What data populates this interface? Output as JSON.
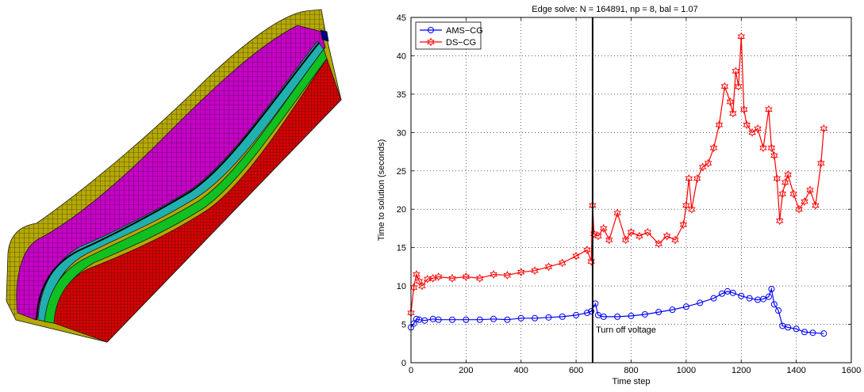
{
  "mesh_figure": {
    "colors": {
      "outer_shell": "#b5a800",
      "mid_layer": "#c800c8",
      "teal_layer": "#20b0b0",
      "green_layer": "#10c020",
      "core": "#d80000",
      "cap": "#000080",
      "mesh_line": "#1a1a1a"
    }
  },
  "chart_data": {
    "type": "line",
    "title": "Edge solve: N = 164891, np = 8, bal = 1.07",
    "xlabel": "Time step",
    "ylabel": "Time to solution (seconds)",
    "xlim": [
      0,
      1600
    ],
    "ylim": [
      0,
      45
    ],
    "xticks": [
      0,
      200,
      400,
      600,
      800,
      1000,
      1200,
      1400,
      1600
    ],
    "yticks": [
      0,
      5,
      10,
      15,
      20,
      25,
      30,
      35,
      40,
      45
    ],
    "grid": "dotted",
    "legend": "top-left",
    "vline": {
      "x": 660,
      "label": "Turn off voltage",
      "label_at": [
        672,
        3.9
      ]
    },
    "series": [
      {
        "name": "AMS−CG",
        "color": "#0000ff",
        "marker": "circle",
        "x": [
          0,
          10,
          20,
          30,
          50,
          80,
          100,
          150,
          200,
          250,
          300,
          350,
          400,
          450,
          500,
          550,
          600,
          640,
          655,
          670,
          680,
          700,
          750,
          800,
          850,
          900,
          950,
          1000,
          1050,
          1100,
          1130,
          1150,
          1170,
          1200,
          1230,
          1260,
          1280,
          1300,
          1310,
          1320,
          1335,
          1350,
          1370,
          1400,
          1430,
          1460,
          1500
        ],
        "values": [
          4.6,
          5.1,
          5.7,
          5.6,
          5.5,
          5.7,
          5.6,
          5.6,
          5.6,
          5.6,
          5.7,
          5.6,
          5.8,
          5.8,
          5.9,
          6.0,
          6.2,
          6.5,
          6.7,
          7.7,
          6.2,
          6.0,
          6.0,
          6.1,
          6.3,
          6.6,
          6.9,
          7.3,
          7.8,
          8.4,
          9.0,
          9.3,
          9.1,
          8.7,
          8.4,
          8.2,
          8.3,
          8.6,
          9.6,
          7.6,
          6.8,
          4.8,
          4.6,
          4.4,
          4.0,
          3.9,
          3.8
        ]
      },
      {
        "name": "DS−CG",
        "color": "#ff0000",
        "marker": "hexagram",
        "x": [
          0,
          10,
          20,
          30,
          40,
          60,
          80,
          100,
          150,
          200,
          250,
          300,
          350,
          400,
          450,
          500,
          550,
          600,
          640,
          655,
          660,
          665,
          680,
          700,
          720,
          750,
          780,
          800,
          830,
          860,
          900,
          930,
          960,
          990,
          1000,
          1010,
          1020,
          1040,
          1060,
          1080,
          1100,
          1120,
          1140,
          1160,
          1170,
          1180,
          1190,
          1200,
          1210,
          1220,
          1240,
          1260,
          1280,
          1300,
          1310,
          1320,
          1330,
          1340,
          1350,
          1360,
          1370,
          1390,
          1410,
          1430,
          1450,
          1470,
          1490,
          1500
        ],
        "values": [
          6.5,
          9.8,
          11.5,
          10.6,
          10.0,
          10.9,
          11.0,
          11.2,
          11.0,
          11.2,
          11.0,
          11.5,
          11.4,
          11.8,
          12.0,
          12.5,
          13.0,
          13.9,
          14.7,
          13.2,
          20.5,
          16.8,
          16.5,
          17.5,
          16.0,
          19.5,
          16.0,
          17.0,
          16.5,
          17.0,
          15.5,
          16.5,
          16.0,
          18.0,
          20.5,
          24.0,
          20.0,
          24.0,
          25.5,
          26.0,
          28.0,
          31.0,
          36.0,
          34.0,
          32.5,
          38.0,
          36.0,
          42.5,
          33.0,
          31.0,
          30.0,
          30.5,
          28.0,
          33.0,
          28.0,
          27.0,
          24.0,
          18.5,
          22.0,
          23.5,
          24.5,
          22.0,
          20.0,
          21.0,
          22.5,
          20.5,
          26.0,
          30.5
        ]
      }
    ]
  }
}
